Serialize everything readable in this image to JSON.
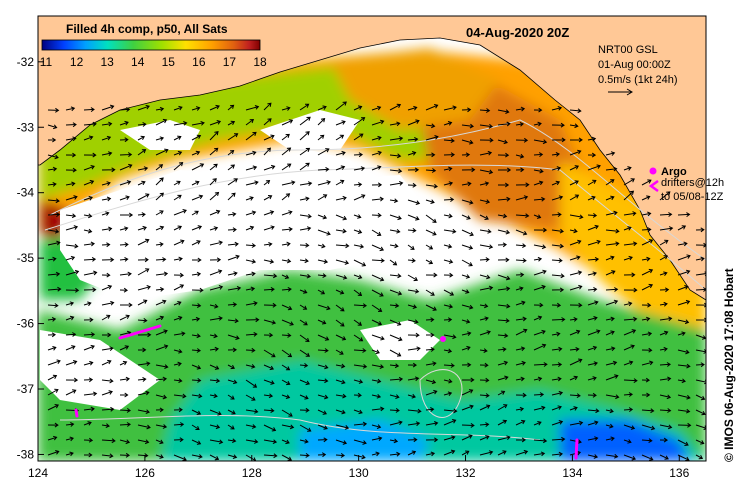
{
  "map": {
    "title": "04-Aug-2020 20Z",
    "colorbar": {
      "title": "Filled 4h comp, p50, All Sats",
      "ticks": [
        "11",
        "12",
        "13",
        "14",
        "15",
        "16",
        "17",
        "18"
      ],
      "colors": [
        "#000080",
        "#0040ff",
        "#00a0ff",
        "#00e0c0",
        "#40d040",
        "#a0e000",
        "#ffe000",
        "#ffa000",
        "#e06010",
        "#c02020",
        "#800000"
      ]
    },
    "info": {
      "line1": "NRT00 GSL",
      "line2": "01-Aug 00:00Z",
      "line3": "0.5m/s (1kt 24h)"
    },
    "legend": {
      "argo_label": "Argo",
      "drifters_line1": "drifters@12h",
      "drifters_line2": "to 05/08-12Z",
      "marker_color": "#ff00ff"
    },
    "credit": "© IMOS 06-Aug-2020 17:08 Hobart",
    "land_color": "#ffc896",
    "axes": {
      "x_ticks": [
        "124",
        "126",
        "128",
        "130",
        "132",
        "134",
        "136"
      ],
      "y_ticks": [
        "-32",
        "-33",
        "-34",
        "-35",
        "-36",
        "-37",
        "-38"
      ],
      "lon_range": [
        124,
        136.5
      ],
      "lat_range": [
        -38.1,
        -31.3
      ]
    }
  }
}
